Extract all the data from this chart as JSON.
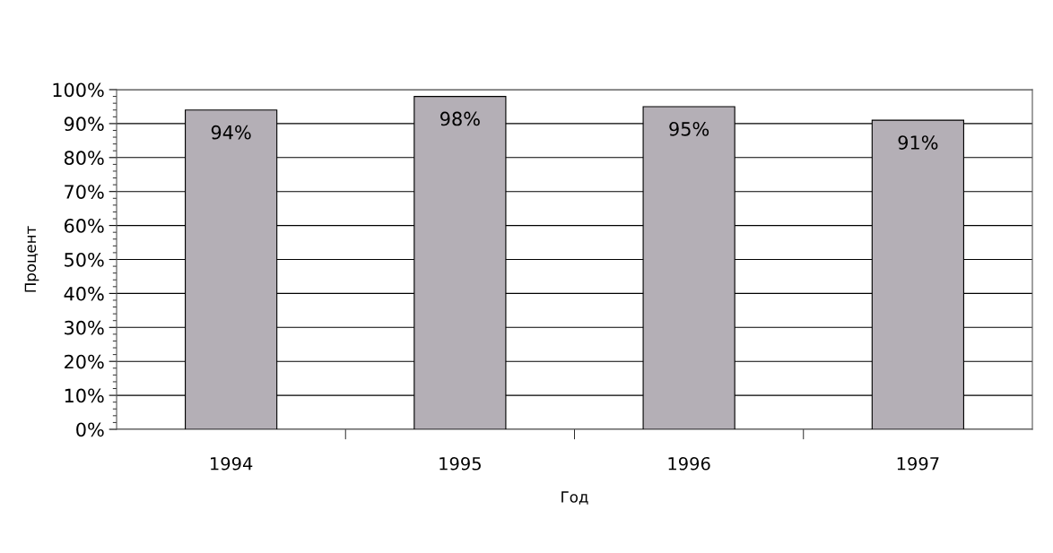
{
  "chart_data": {
    "type": "bar",
    "xlabel": "Год",
    "ylabel": "Процент",
    "categories": [
      "1994",
      "1995",
      "1996",
      "1997"
    ],
    "values": [
      94,
      98,
      95,
      91
    ],
    "value_labels": [
      "94%",
      "98%",
      "95%",
      "91%"
    ],
    "color": "#b4afb6",
    "ylim": [
      0,
      100
    ],
    "yticks": [
      {
        "value": 0,
        "label": "0%"
      },
      {
        "value": 10,
        "label": "10%"
      },
      {
        "value": 20,
        "label": "20%"
      },
      {
        "value": 30,
        "label": "30%"
      },
      {
        "value": 40,
        "label": "40%"
      },
      {
        "value": 50,
        "label": "50%"
      },
      {
        "value": 60,
        "label": "60%"
      },
      {
        "value": 70,
        "label": "70%"
      },
      {
        "value": 80,
        "label": "80%"
      },
      {
        "value": 90,
        "label": "90%"
      },
      {
        "value": 100,
        "label": "100%"
      }
    ],
    "grid": "y"
  }
}
